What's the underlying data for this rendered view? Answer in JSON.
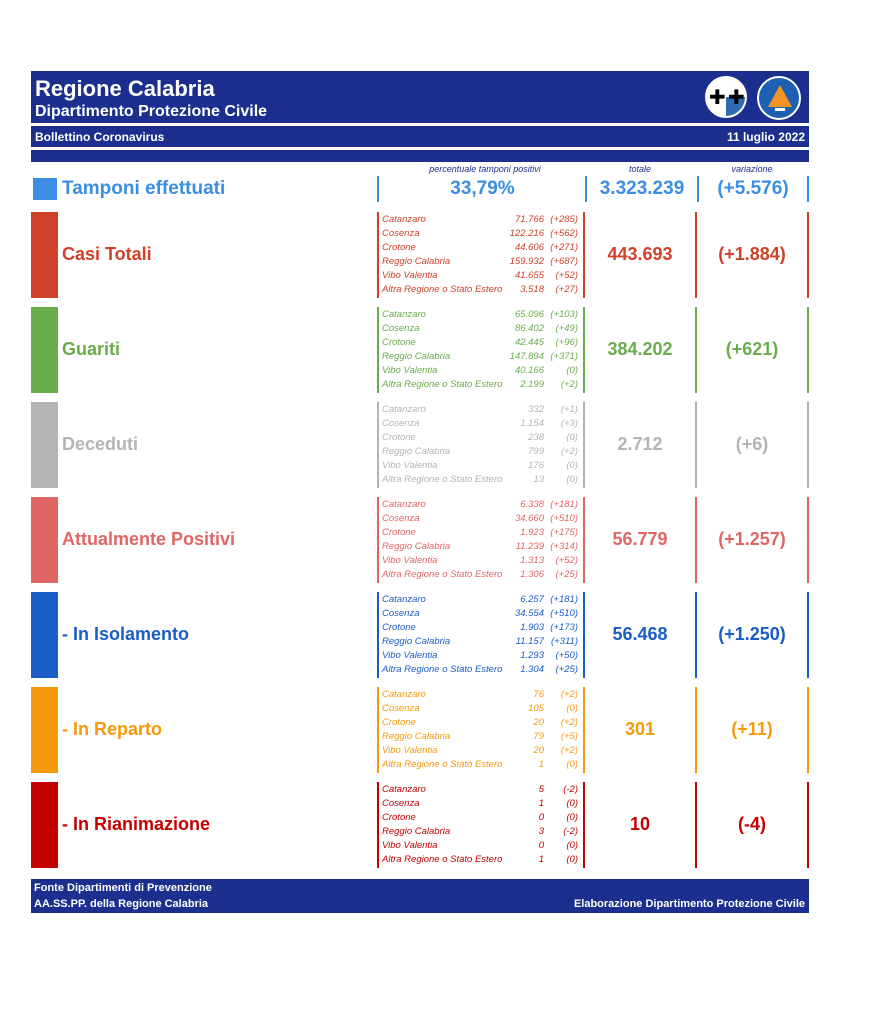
{
  "header": {
    "title": "Regione Calabria",
    "subtitle": "Dipartimento Protezione Civile",
    "bulletin": "Bollettino Coronavirus",
    "date": "11 luglio 2022",
    "logos": [
      "calabria-region-emblem",
      "protezione-civile-logo"
    ]
  },
  "columns": {
    "pct_label": "percentuale tamponi positivi",
    "total_label": "totale",
    "variation_label": "variazione"
  },
  "tamponi": {
    "label": "Tamponi effettuati",
    "pct": "33,79%",
    "total": "3.323.239",
    "variation": "(+5.576)",
    "color": "#3b8ee3"
  },
  "rows": [
    {
      "key": "casi-totali",
      "label": "Casi Totali",
      "color": "#cf4129",
      "total": "443.693",
      "variation": "(+1.884)",
      "provinces": [
        {
          "name": "Catanzaro",
          "value": "71.766",
          "delta": "(+285)"
        },
        {
          "name": "Cosenza",
          "value": "122.216",
          "delta": "(+562)"
        },
        {
          "name": "Crotone",
          "value": "44.606",
          "delta": "(+271)"
        },
        {
          "name": "Reggio Calabria",
          "value": "159.932",
          "delta": "(+687)"
        },
        {
          "name": "Vibo Valentia",
          "value": "41.655",
          "delta": "(+52)"
        },
        {
          "name": "Altra Regione o Stato Estero",
          "value": "3.518",
          "delta": "(+27)"
        }
      ]
    },
    {
      "key": "guariti",
      "label": "Guariti",
      "color": "#6aac4b",
      "total": "384.202",
      "variation": "(+621)",
      "provinces": [
        {
          "name": "Catanzaro",
          "value": "65.096",
          "delta": "(+103)"
        },
        {
          "name": "Cosenza",
          "value": "86.402",
          "delta": "(+49)"
        },
        {
          "name": "Crotone",
          "value": "42.445",
          "delta": "(+96)"
        },
        {
          "name": "Reggio Calabria",
          "value": "147.894",
          "delta": "(+371)"
        },
        {
          "name": "Vibo Valentia",
          "value": "40.166",
          "delta": "(0)"
        },
        {
          "name": "Altra Regione o Stato Estero",
          "value": "2.199",
          "delta": "(+2)"
        }
      ]
    },
    {
      "key": "deceduti",
      "label": "Deceduti",
      "color": "#b4b4b4",
      "total": "2.712",
      "variation": "(+6)",
      "provinces": [
        {
          "name": "Catanzaro",
          "value": "332",
          "delta": "(+1)"
        },
        {
          "name": "Cosenza",
          "value": "1.154",
          "delta": "(+3)"
        },
        {
          "name": "Crotone",
          "value": "238",
          "delta": "(0)"
        },
        {
          "name": "Reggio Calabria",
          "value": "799",
          "delta": "(+2)"
        },
        {
          "name": "Vibo Valentia",
          "value": "176",
          "delta": "(0)"
        },
        {
          "name": "Altra Regione o Stato Estero",
          "value": "13",
          "delta": "(0)"
        }
      ]
    },
    {
      "key": "attualmente-positivi",
      "label": "Attualmente Positivi",
      "color": "#e06666",
      "total": "56.779",
      "variation": "(+1.257)",
      "provinces": [
        {
          "name": "Catanzaro",
          "value": "6.338",
          "delta": "(+181)"
        },
        {
          "name": "Cosenza",
          "value": "34.660",
          "delta": "(+510)"
        },
        {
          "name": "Crotone",
          "value": "1.923",
          "delta": "(+175)"
        },
        {
          "name": "Reggio Calabria",
          "value": "11.239",
          "delta": "(+314)"
        },
        {
          "name": "Vibo Valentia",
          "value": "1.313",
          "delta": "(+52)"
        },
        {
          "name": "Altra Regione o Stato Estero",
          "value": "1.306",
          "delta": "(+25)"
        }
      ]
    },
    {
      "key": "in-isolamento",
      "label": " - In Isolamento",
      "color": "#1a5dc8",
      "total": "56.468",
      "variation": "(+1.250)",
      "provinces": [
        {
          "name": "Catanzaro",
          "value": "6.257",
          "delta": "(+181)"
        },
        {
          "name": "Cosenza",
          "value": "34.554",
          "delta": "(+510)"
        },
        {
          "name": "Crotone",
          "value": "1.903",
          "delta": "(+173)"
        },
        {
          "name": "Reggio Calabria",
          "value": "11.157",
          "delta": "(+311)"
        },
        {
          "name": "Vibo Valentia",
          "value": "1.293",
          "delta": "(+50)"
        },
        {
          "name": "Altra Regione o Stato Estero",
          "value": "1.304",
          "delta": "(+25)"
        }
      ]
    },
    {
      "key": "in-reparto",
      "label": " - In Reparto",
      "color": "#f59a0c",
      "total": "301",
      "variation": "(+11)",
      "provinces": [
        {
          "name": "Catanzaro",
          "value": "76",
          "delta": "(+2)"
        },
        {
          "name": "Cosenza",
          "value": "105",
          "delta": "(0)"
        },
        {
          "name": "Crotone",
          "value": "20",
          "delta": "(+2)"
        },
        {
          "name": "Reggio Calabria",
          "value": "79",
          "delta": "(+5)"
        },
        {
          "name": "Vibo Valentia",
          "value": "20",
          "delta": "(+2)"
        },
        {
          "name": "Altra Regione o Stato Estero",
          "value": "1",
          "delta": "(0)"
        }
      ]
    },
    {
      "key": "in-rianimazione",
      "label": " - In Rianimazione",
      "color": "#c40000",
      "total": "10",
      "variation": "(-4)",
      "provinces": [
        {
          "name": "Catanzaro",
          "value": "5",
          "delta": "(-2)"
        },
        {
          "name": "Cosenza",
          "value": "1",
          "delta": "(0)"
        },
        {
          "name": "Crotone",
          "value": "0",
          "delta": "(0)"
        },
        {
          "name": "Reggio Calabria",
          "value": "3",
          "delta": "(-2)"
        },
        {
          "name": "Vibo Valentia",
          "value": "0",
          "delta": "(0)"
        },
        {
          "name": "Altra Regione o Stato Estero",
          "value": "1",
          "delta": "(0)"
        }
      ]
    }
  ],
  "footer": {
    "source_line1": "Fonte Dipartimenti di Prevenzione",
    "source_line2": "AA.SS.PP.  della Regione Calabria",
    "elaboration": "Elaborazione Dipartimento Protezione Civile"
  }
}
